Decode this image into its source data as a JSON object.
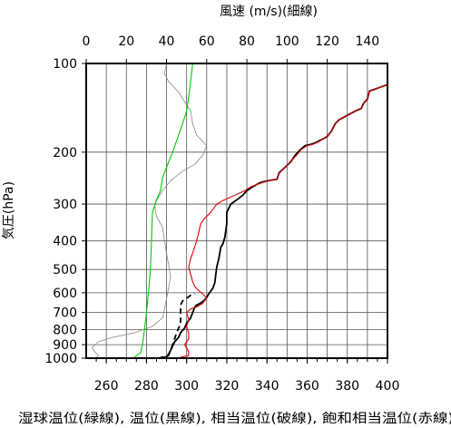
{
  "chart_data": {
    "type": "line",
    "title": "",
    "top_axis": {
      "label": "風速 (m/s)(細線)",
      "range": [
        0,
        150
      ],
      "ticks": [
        0,
        20,
        40,
        60,
        80,
        100,
        120,
        140
      ]
    },
    "bottom_axis": {
      "label": "湿球温位(緑線), 温位(黒線), 相当温位(破線), 飽和相当温位(赤線)",
      "range": [
        250,
        400
      ],
      "ticks": [
        260,
        280,
        300,
        320,
        340,
        360,
        380,
        400
      ]
    },
    "left_axis": {
      "label": "気圧(hPa)",
      "scale": "log",
      "range": [
        1000,
        100
      ],
      "ticks": [
        1000,
        900,
        800,
        700,
        600,
        500,
        400,
        300,
        200,
        100
      ]
    },
    "grid": true,
    "series": [
      {
        "key": "wind_speed",
        "color": "#888888",
        "axis": "top",
        "points": [
          [
            5,
            1000
          ],
          [
            6,
            975
          ],
          [
            4,
            950
          ],
          [
            3,
            920
          ],
          [
            6,
            880
          ],
          [
            13,
            850
          ],
          [
            24,
            820
          ],
          [
            33,
            780
          ],
          [
            38,
            730
          ],
          [
            39,
            680
          ],
          [
            40,
            630
          ],
          [
            41,
            580
          ],
          [
            42,
            530
          ],
          [
            41,
            480
          ],
          [
            40,
            440
          ],
          [
            39,
            400
          ],
          [
            38,
            360
          ],
          [
            35,
            330
          ],
          [
            34,
            300
          ],
          [
            38,
            270
          ],
          [
            42,
            250
          ],
          [
            48,
            232
          ],
          [
            54,
            220
          ],
          [
            58,
            205
          ],
          [
            60,
            190
          ],
          [
            55,
            175
          ],
          [
            53,
            160
          ],
          [
            52,
            145
          ],
          [
            49,
            135
          ],
          [
            46,
            125
          ],
          [
            41,
            115
          ],
          [
            39,
            108
          ],
          [
            40,
            100
          ]
        ]
      },
      {
        "key": "wet_bulb_potential_temperature",
        "color": "#00cc00",
        "axis": "bottom",
        "points": [
          [
            274,
            1000
          ],
          [
            275,
            980
          ],
          [
            277,
            960
          ],
          [
            278,
            900
          ],
          [
            279,
            800
          ],
          [
            280,
            700
          ],
          [
            281,
            600
          ],
          [
            282,
            500
          ],
          [
            282.5,
            400
          ],
          [
            283,
            320
          ],
          [
            285,
            290
          ],
          [
            287,
            270
          ],
          [
            288,
            245
          ],
          [
            290,
            225
          ],
          [
            293,
            200
          ],
          [
            296,
            175
          ],
          [
            298,
            160
          ],
          [
            300,
            145
          ],
          [
            301,
            130
          ],
          [
            302,
            115
          ],
          [
            303,
            100
          ]
        ]
      },
      {
        "key": "potential_temperature",
        "color": "#000000",
        "axis": "bottom",
        "points": [
          [
            286,
            1000
          ],
          [
            290,
            990
          ],
          [
            291,
            970
          ],
          [
            292,
            940
          ],
          [
            293,
            910
          ],
          [
            294,
            880
          ],
          [
            296,
            850
          ],
          [
            297,
            820
          ],
          [
            299,
            790
          ],
          [
            300,
            760
          ],
          [
            302,
            730
          ],
          [
            303,
            700
          ],
          [
            304,
            672
          ],
          [
            305,
            660
          ],
          [
            307,
            650
          ],
          [
            309,
            635
          ],
          [
            310,
            622
          ],
          [
            311,
            605
          ],
          [
            313,
            580
          ],
          [
            314,
            555
          ],
          [
            314.5,
            520
          ],
          [
            315,
            490
          ],
          [
            316,
            460
          ],
          [
            316.5,
            440
          ],
          [
            317,
            420
          ],
          [
            318,
            410
          ],
          [
            319,
            390
          ],
          [
            319.5,
            370
          ],
          [
            320,
            350
          ],
          [
            320,
            320
          ],
          [
            322,
            300
          ],
          [
            325,
            290
          ],
          [
            328,
            280
          ],
          [
            330,
            270
          ],
          [
            333,
            262
          ],
          [
            336,
            255
          ],
          [
            338,
            252
          ],
          [
            342,
            249
          ],
          [
            345,
            247
          ],
          [
            346,
            235
          ],
          [
            349,
            225
          ],
          [
            352,
            215
          ],
          [
            354,
            205
          ],
          [
            357,
            195
          ],
          [
            359,
            190
          ],
          [
            362,
            188
          ],
          [
            364,
            186
          ],
          [
            366,
            183
          ],
          [
            368,
            180
          ],
          [
            370,
            177
          ],
          [
            372,
            170
          ],
          [
            374,
            160
          ],
          [
            376,
            155
          ],
          [
            380,
            150
          ],
          [
            384,
            145
          ],
          [
            387,
            142
          ],
          [
            388,
            137
          ],
          [
            390,
            132
          ],
          [
            391,
            124
          ],
          [
            394,
            122
          ],
          [
            397,
            120
          ],
          [
            400,
            118
          ]
        ]
      },
      {
        "key": "equivalent_potential_temperature",
        "color": "#000000",
        "dashed": true,
        "axis": "bottom",
        "points": [
          [
            286,
            1000
          ],
          [
            291,
            980
          ],
          [
            292,
            940
          ],
          [
            293,
            900
          ],
          [
            294,
            860
          ],
          [
            295,
            820
          ],
          [
            296,
            790
          ],
          [
            297,
            770
          ],
          [
            297,
            740
          ],
          [
            297,
            700
          ],
          [
            297,
            660
          ],
          [
            298,
            640
          ],
          [
            300,
            625
          ],
          [
            302,
            612
          ],
          [
            304,
            602
          ]
        ]
      },
      {
        "key": "saturated_equivalent_potential_temperature",
        "color": "#dd0000",
        "axis": "bottom",
        "points": [
          [
            295,
            1000
          ],
          [
            298,
            990
          ],
          [
            301,
            980
          ],
          [
            301,
            950
          ],
          [
            299,
            900
          ],
          [
            301,
            860
          ],
          [
            301,
            820
          ],
          [
            300,
            780
          ],
          [
            301,
            740
          ],
          [
            300,
            700
          ],
          [
            302,
            680
          ],
          [
            305,
            670
          ],
          [
            308,
            652
          ],
          [
            310,
            625
          ],
          [
            308,
            605
          ],
          [
            306,
            590
          ],
          [
            304,
            570
          ],
          [
            303,
            550
          ],
          [
            302,
            520
          ],
          [
            301,
            490
          ],
          [
            302,
            460
          ],
          [
            303,
            440
          ],
          [
            304,
            420
          ],
          [
            305,
            400
          ],
          [
            306,
            375
          ],
          [
            307,
            350
          ],
          [
            309,
            335
          ],
          [
            312,
            320
          ],
          [
            315,
            300
          ],
          [
            318,
            292
          ],
          [
            321,
            286
          ],
          [
            325,
            278
          ],
          [
            329,
            270
          ],
          [
            332,
            262
          ],
          [
            336,
            256
          ],
          [
            339,
            252
          ],
          [
            342,
            249
          ],
          [
            345,
            247
          ],
          [
            346,
            236
          ],
          [
            349,
            225
          ],
          [
            352,
            214
          ],
          [
            355,
            204
          ],
          [
            357,
            196
          ],
          [
            360,
            190
          ],
          [
            363,
            188
          ],
          [
            366,
            184
          ],
          [
            368,
            180
          ],
          [
            370,
            177
          ],
          [
            372,
            170
          ],
          [
            374,
            160
          ],
          [
            376,
            155
          ],
          [
            380,
            150
          ],
          [
            384,
            145
          ],
          [
            387,
            142
          ],
          [
            388,
            137
          ],
          [
            390,
            132
          ],
          [
            391,
            124
          ],
          [
            394,
            122
          ],
          [
            397,
            120
          ],
          [
            400,
            118
          ]
        ]
      }
    ]
  }
}
